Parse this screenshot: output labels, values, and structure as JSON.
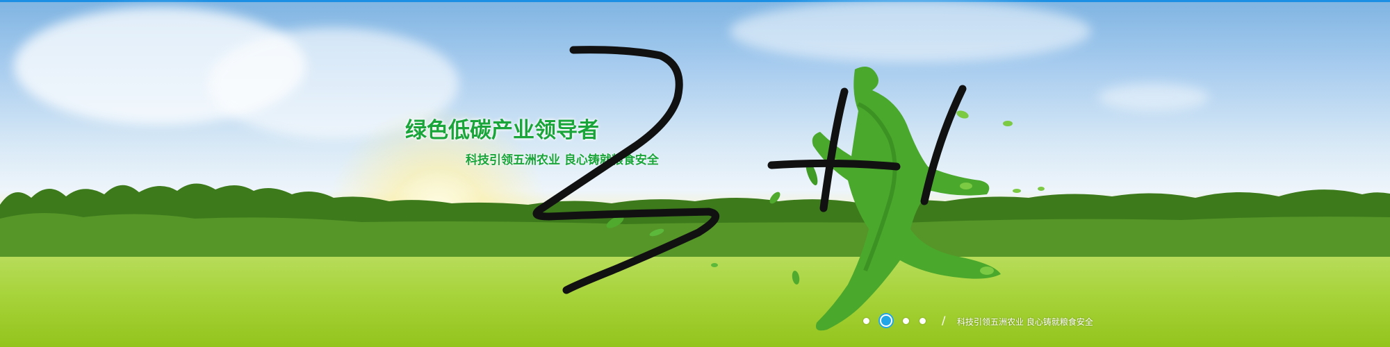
{
  "banner": {
    "headline": "绿色低碳产业领导者",
    "subline": "科技引领五洲农业 良心铸就粮食安全",
    "caption": "科技引领五洲农业 良心铸就粮食安全",
    "separator": "/",
    "pager": {
      "total": 4,
      "active_index": 2
    },
    "accent_color": "#1aa53a",
    "pager_active_color": "#22a6e8"
  },
  "overlay": {
    "scribble_description": "handwritten marks over the image"
  }
}
